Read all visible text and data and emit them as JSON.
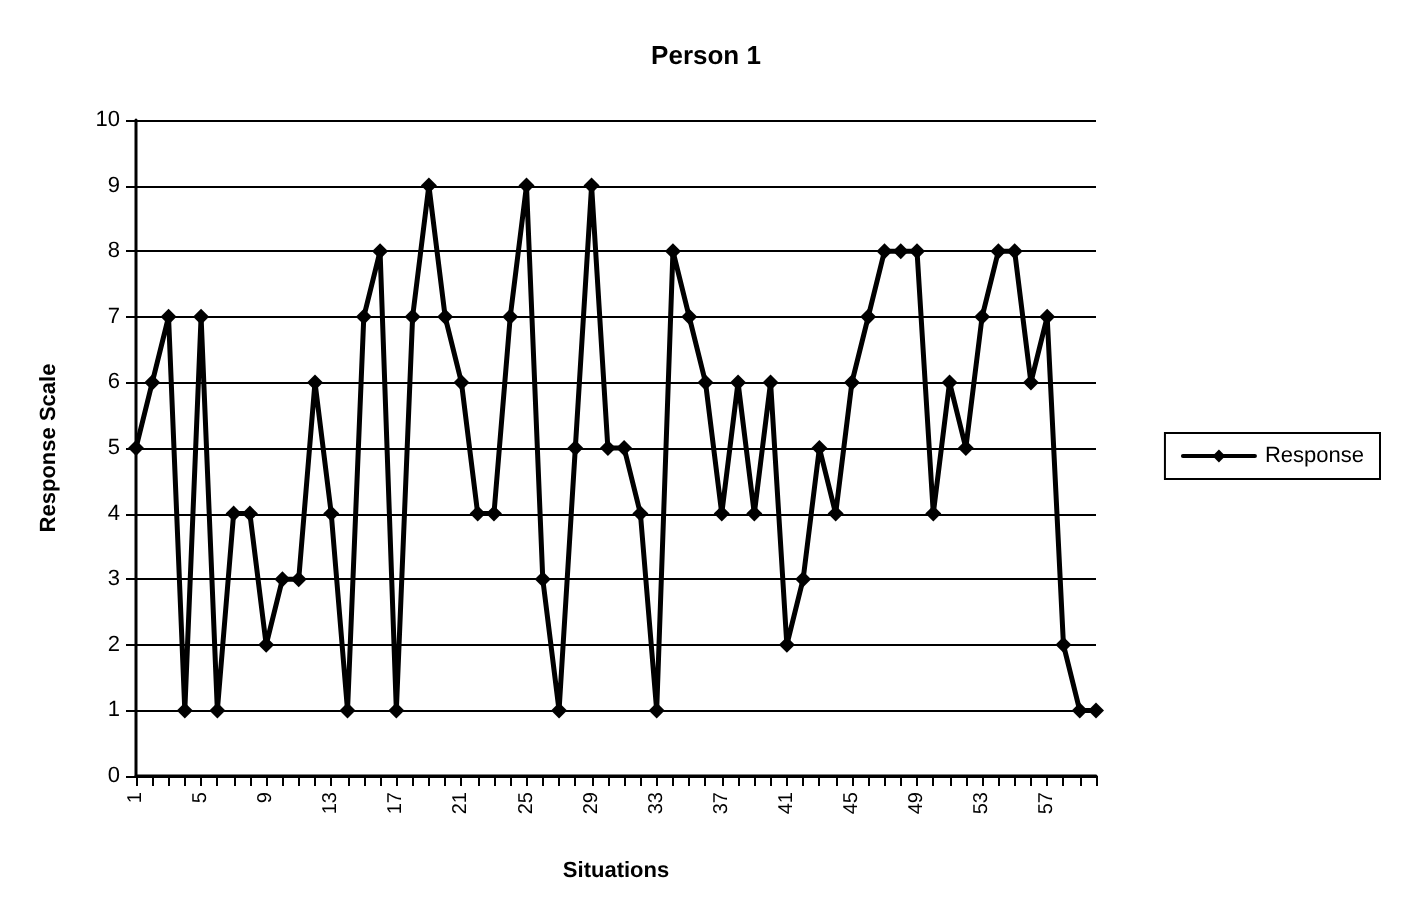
{
  "chart_data": {
    "type": "line",
    "title": "Person 1",
    "xlabel": "Situations",
    "ylabel": "Response Scale",
    "categories": [
      "1",
      null,
      null,
      null,
      "5",
      null,
      null,
      null,
      "9",
      null,
      null,
      null,
      "13",
      null,
      null,
      null,
      "17",
      null,
      null,
      null,
      "21",
      null,
      null,
      null,
      "25",
      null,
      null,
      null,
      "29",
      null,
      null,
      null,
      "33",
      null,
      null,
      null,
      "37",
      null,
      null,
      null,
      "41",
      null,
      null,
      null,
      "45",
      null,
      null,
      null,
      "49",
      null,
      null,
      null,
      "53",
      null,
      null,
      null,
      "57",
      null,
      null,
      null
    ],
    "series": [
      {
        "name": "Response",
        "color": "#000000",
        "values": [
          5,
          6,
          7,
          1,
          7,
          1,
          4,
          4,
          2,
          3,
          3,
          6,
          4,
          1,
          7,
          8,
          1,
          7,
          9,
          7,
          6,
          4,
          4,
          7,
          9,
          3,
          1,
          5,
          9,
          5,
          5,
          4,
          1,
          8,
          7,
          6,
          4,
          6,
          4,
          6,
          2,
          3,
          5,
          4,
          6,
          7,
          8,
          8,
          8,
          4,
          6,
          5,
          7,
          8,
          8,
          6,
          7,
          2,
          1,
          1
        ]
      }
    ],
    "ylim": [
      0,
      10
    ],
    "yticks": [
      0,
      1,
      2,
      3,
      4,
      5,
      6,
      7,
      8,
      9,
      10
    ],
    "grid": "y",
    "legend": "right",
    "marker": "diamond",
    "line_style": "solid"
  }
}
